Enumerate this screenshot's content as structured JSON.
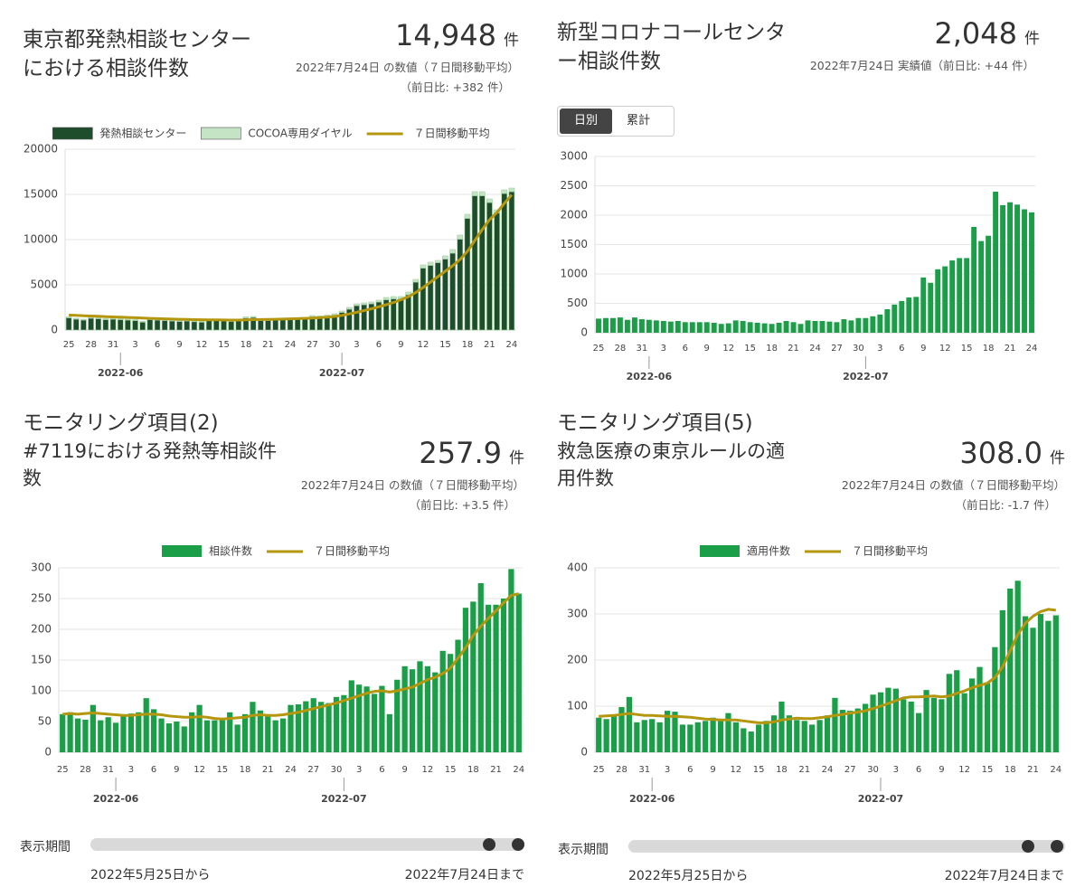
{
  "chart_data": [
    {
      "type": "bar",
      "title": "東京都発熱相談センターにおける相談件数",
      "headline_value": "14,948",
      "headline_unit": "件",
      "headline_note": "2022年7月24日 の数値（７日間移動平均）",
      "headline_change": "（前日比: +382 件）",
      "stacked": true,
      "legend": "top",
      "categories": [
        "25",
        null,
        null,
        "28",
        null,
        null,
        "31",
        null,
        null,
        "3",
        null,
        null,
        "6",
        null,
        null,
        "9",
        null,
        null,
        "12",
        null,
        null,
        "15",
        null,
        null,
        "18",
        null,
        null,
        "21",
        null,
        null,
        "24",
        null,
        null,
        "27",
        null,
        null,
        "30",
        null,
        null,
        "3",
        null,
        null,
        "6",
        null,
        null,
        "9",
        null,
        null,
        "12",
        null,
        null,
        "15",
        null,
        null,
        "18",
        null,
        null,
        "21",
        null,
        null,
        "24"
      ],
      "x_groups": [
        {
          "label": "2022-06",
          "start_index": 7
        },
        {
          "label": "2022-07",
          "start_index": 37
        }
      ],
      "ylim": [
        0,
        20000
      ],
      "yticks": [
        0,
        5000,
        10000,
        15000,
        20000
      ],
      "grid": true,
      "series": [
        {
          "name": "発熱相談センター",
          "type": "bar",
          "color": "#1e4d2b",
          "values": [
            1350,
            1200,
            1100,
            1300,
            1250,
            1150,
            1200,
            1150,
            1100,
            1050,
            870,
            1150,
            1100,
            1050,
            1000,
            950,
            1000,
            920,
            870,
            1100,
            1050,
            1000,
            950,
            1100,
            1330,
            1380,
            1050,
            1050,
            1100,
            1150,
            1200,
            1250,
            1280,
            1450,
            1420,
            1500,
            1650,
            1950,
            2300,
            2700,
            2800,
            2900,
            3100,
            3350,
            3450,
            3450,
            3900,
            5300,
            6850,
            7150,
            7450,
            7850,
            8500,
            10050,
            12350,
            14850,
            14850,
            14100,
            12950,
            15100,
            15300
          ]
        },
        {
          "name": "COCOA専用ダイヤル",
          "type": "bar",
          "color": "#c5e4c5",
          "values": [
            100,
            100,
            100,
            100,
            100,
            100,
            100,
            100,
            100,
            100,
            80,
            100,
            100,
            100,
            100,
            100,
            100,
            80,
            80,
            100,
            100,
            100,
            100,
            100,
            120,
            120,
            100,
            100,
            100,
            100,
            100,
            100,
            120,
            150,
            130,
            150,
            150,
            150,
            200,
            200,
            200,
            200,
            200,
            250,
            250,
            250,
            300,
            300,
            350,
            350,
            250,
            350,
            400,
            450,
            450,
            450,
            450,
            400,
            350,
            400,
            400
          ]
        },
        {
          "name": "７日間移動平均",
          "type": "line",
          "color": "#b5960f",
          "values": [
            1650,
            1620,
            1580,
            1550,
            1520,
            1480,
            1450,
            1420,
            1390,
            1360,
            1320,
            1290,
            1260,
            1240,
            1210,
            1190,
            1170,
            1150,
            1140,
            1130,
            1120,
            1110,
            1100,
            1100,
            1120,
            1150,
            1160,
            1170,
            1190,
            1210,
            1240,
            1260,
            1290,
            1330,
            1380,
            1430,
            1500,
            1620,
            1780,
            1960,
            2150,
            2350,
            2570,
            2800,
            3050,
            3350,
            3680,
            4150,
            4700,
            5300,
            5900,
            6500,
            7100,
            7800,
            8700,
            9900,
            11100,
            12200,
            13000,
            14000,
            14948
          ]
        }
      ]
    },
    {
      "type": "bar",
      "title": "新型コロナコールセンター相談件数",
      "headline_value": "2,048",
      "headline_unit": "件",
      "headline_note": "2022年7月24日 実績値（前日比: +44 件）",
      "buttons": [
        "日別",
        "累計"
      ],
      "categories": [
        "25",
        null,
        null,
        "28",
        null,
        null,
        "31",
        null,
        null,
        "3",
        null,
        null,
        "6",
        null,
        null,
        "9",
        null,
        null,
        "12",
        null,
        null,
        "15",
        null,
        null,
        "18",
        null,
        null,
        "21",
        null,
        null,
        "24",
        null,
        null,
        "27",
        null,
        null,
        "30",
        null,
        null,
        "3",
        null,
        null,
        "6",
        null,
        null,
        "9",
        null,
        null,
        "12",
        null,
        null,
        "15",
        null,
        null,
        "18",
        null,
        null,
        "21",
        null,
        null,
        "24"
      ],
      "x_groups": [
        {
          "label": "2022-06",
          "start_index": 7
        },
        {
          "label": "2022-07",
          "start_index": 37
        }
      ],
      "ylim": [
        0,
        3000
      ],
      "yticks": [
        0,
        500,
        1000,
        1500,
        2000,
        2500,
        3000
      ],
      "grid": true,
      "series": [
        {
          "type": "bar",
          "color": "#1a9e48",
          "values": [
            240,
            250,
            250,
            260,
            220,
            260,
            230,
            220,
            210,
            200,
            190,
            200,
            180,
            180,
            180,
            180,
            170,
            150,
            160,
            210,
            200,
            180,
            170,
            160,
            150,
            170,
            200,
            180,
            150,
            210,
            200,
            200,
            190,
            180,
            230,
            210,
            250,
            250,
            280,
            310,
            400,
            480,
            540,
            600,
            610,
            940,
            850,
            1080,
            1130,
            1230,
            1270,
            1270,
            1800,
            1560,
            1650,
            2400,
            2170,
            2220,
            2180,
            2100,
            2048
          ]
        }
      ]
    },
    {
      "type": "bar",
      "title": "モニタリング項目(2)",
      "subtitle": "#7119における発熱等相談件数",
      "headline_value": "257.9",
      "headline_unit": "件",
      "headline_note": "2022年7月24日 の数値（７日間移動平均）",
      "headline_change": "（前日比: +3.5 件）",
      "legend": "top",
      "period": {
        "label": "表示期間",
        "from": "2022年5月25日から",
        "to": "2022年7月24日まで"
      },
      "categories": [
        "25",
        null,
        null,
        "28",
        null,
        null,
        "31",
        null,
        null,
        "3",
        null,
        null,
        "6",
        null,
        null,
        "9",
        null,
        null,
        "12",
        null,
        null,
        "15",
        null,
        null,
        "18",
        null,
        null,
        "21",
        null,
        null,
        "24",
        null,
        null,
        "27",
        null,
        null,
        "30",
        null,
        null,
        "3",
        null,
        null,
        "6",
        null,
        null,
        "9",
        null,
        null,
        "12",
        null,
        null,
        "15",
        null,
        null,
        "18",
        null,
        null,
        "21",
        null,
        null,
        "24"
      ],
      "x_groups": [
        {
          "label": "2022-06",
          "start_index": 7
        },
        {
          "label": "2022-07",
          "start_index": 37
        }
      ],
      "ylim": [
        0,
        300
      ],
      "yticks": [
        0,
        50,
        100,
        150,
        200,
        250,
        300
      ],
      "grid": true,
      "series": [
        {
          "name": "相談件数",
          "type": "bar",
          "color": "#1a9e48",
          "values": [
            62,
            65,
            55,
            53,
            77,
            52,
            57,
            48,
            60,
            63,
            65,
            88,
            70,
            55,
            47,
            50,
            42,
            65,
            77,
            52,
            52,
            55,
            65,
            45,
            62,
            82,
            68,
            62,
            52,
            55,
            77,
            78,
            83,
            88,
            82,
            80,
            90,
            93,
            117,
            110,
            107,
            95,
            108,
            62,
            118,
            140,
            135,
            148,
            140,
            130,
            165,
            160,
            183,
            235,
            245,
            275,
            240,
            240,
            250,
            298,
            258
          ]
        },
        {
          "name": "７日間移動平均",
          "type": "line",
          "color": "#b5960f",
          "values": [
            62,
            63,
            62,
            63,
            64,
            63,
            62,
            61,
            60,
            60,
            61,
            62,
            62,
            61,
            59,
            58,
            57,
            57,
            58,
            57,
            55,
            54,
            55,
            56,
            57,
            60,
            61,
            60,
            60,
            61,
            63,
            65,
            68,
            71,
            74,
            77,
            80,
            84,
            88,
            92,
            96,
            99,
            100,
            98,
            100,
            103,
            106,
            112,
            118,
            122,
            128,
            137,
            153,
            170,
            190,
            205,
            218,
            230,
            243,
            255,
            257.9
          ]
        }
      ]
    },
    {
      "type": "bar",
      "title": "モニタリング項目(5)",
      "subtitle": "救急医療の東京ルールの適用件数",
      "headline_value": "308.0",
      "headline_unit": "件",
      "headline_note": "2022年7月24日 の数値（７日間移動平均）",
      "headline_change": "（前日比: -1.7 件）",
      "legend": "top",
      "period": {
        "label": "表示期間",
        "from": "2022年5月25日から",
        "to": "2022年7月24日まで"
      },
      "categories": [
        "25",
        null,
        null,
        "28",
        null,
        null,
        "31",
        null,
        null,
        "3",
        null,
        null,
        "6",
        null,
        null,
        "9",
        null,
        null,
        "12",
        null,
        null,
        "15",
        null,
        null,
        "18",
        null,
        null,
        "21",
        null,
        null,
        "24",
        null,
        null,
        "27",
        null,
        null,
        "30",
        null,
        null,
        "3",
        null,
        null,
        "6",
        null,
        null,
        "9",
        null,
        null,
        "12",
        null,
        null,
        "15",
        null,
        null,
        "18",
        null,
        null,
        "21",
        null,
        null,
        "24"
      ],
      "x_groups": [
        {
          "label": "2022-06",
          "start_index": 7
        },
        {
          "label": "2022-07",
          "start_index": 37
        }
      ],
      "ylim": [
        0,
        400
      ],
      "yticks": [
        0,
        100,
        200,
        300,
        400
      ],
      "grid": true,
      "series": [
        {
          "name": "適用件数",
          "type": "bar",
          "color": "#1a9e48",
          "values": [
            75,
            72,
            80,
            98,
            120,
            65,
            70,
            72,
            65,
            90,
            88,
            60,
            60,
            65,
            68,
            75,
            70,
            85,
            65,
            52,
            45,
            60,
            68,
            80,
            110,
            80,
            70,
            68,
            60,
            70,
            80,
            118,
            92,
            90,
            95,
            105,
            125,
            130,
            140,
            138,
            115,
            110,
            85,
            135,
            118,
            115,
            170,
            178,
            128,
            160,
            185,
            150,
            228,
            308,
            355,
            372,
            295,
            270,
            300,
            285,
            297
          ]
        },
        {
          "name": "７日間移動平均",
          "type": "line",
          "color": "#b5960f",
          "values": [
            78,
            79,
            80,
            82,
            84,
            82,
            80,
            80,
            79,
            78,
            78,
            77,
            76,
            74,
            72,
            71,
            70,
            70,
            70,
            68,
            66,
            64,
            64,
            66,
            70,
            72,
            74,
            73,
            73,
            75,
            77,
            80,
            82,
            85,
            87,
            90,
            95,
            100,
            106,
            112,
            118,
            120,
            120,
            121,
            122,
            120,
            122,
            128,
            133,
            140,
            145,
            150,
            162,
            185,
            220,
            255,
            280,
            295,
            305,
            310,
            308
          ]
        }
      ]
    }
  ]
}
